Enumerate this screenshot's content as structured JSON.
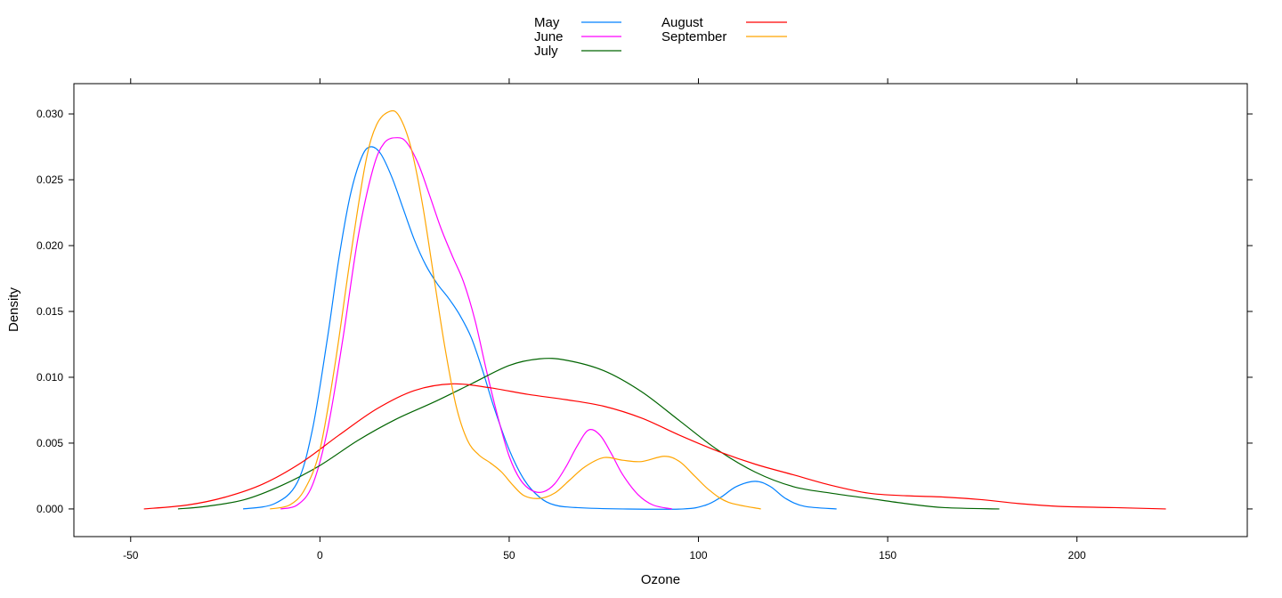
{
  "chart_data": {
    "type": "line",
    "xlabel": "Ozone",
    "ylabel": "Density",
    "xlim": [
      -65,
      245
    ],
    "ylim": [
      -0.0021,
      0.0323
    ],
    "x_ticks": [
      -50,
      0,
      50,
      100,
      150,
      200
    ],
    "x_tick_labels": [
      "-50",
      "0",
      "50",
      "100",
      "150",
      "200"
    ],
    "y_ticks": [
      0,
      0.005,
      0.01,
      0.015,
      0.02,
      0.025,
      0.03
    ],
    "y_tick_labels": [
      "0.000",
      "0.005",
      "0.010",
      "0.015",
      "0.020",
      "0.025",
      "0.030"
    ],
    "legend_position": "top",
    "series": [
      {
        "name": "May",
        "color": "#0080ff",
        "points": [
          [
            -20.3,
            0
          ],
          [
            -12,
            0.0004
          ],
          [
            -6,
            0.002
          ],
          [
            -2,
            0.006
          ],
          [
            2,
            0.013
          ],
          [
            5,
            0.019
          ],
          [
            8,
            0.0238
          ],
          [
            11,
            0.0267
          ],
          [
            13.3,
            0.0275
          ],
          [
            16,
            0.027
          ],
          [
            19,
            0.0252
          ],
          [
            22,
            0.0228
          ],
          [
            25,
            0.0204
          ],
          [
            28,
            0.0185
          ],
          [
            31,
            0.0171
          ],
          [
            34,
            0.016
          ],
          [
            37,
            0.0147
          ],
          [
            40,
            0.013
          ],
          [
            43,
            0.0105
          ],
          [
            46,
            0.0077
          ],
          [
            50,
            0.0045
          ],
          [
            54,
            0.0022
          ],
          [
            58,
            0.0009
          ],
          [
            62,
            0.0003
          ],
          [
            68,
            0.0001
          ],
          [
            80,
            0
          ],
          [
            96,
            0
          ],
          [
            102,
            0.0003
          ],
          [
            106,
            0.0009
          ],
          [
            110,
            0.0017
          ],
          [
            115,
            0.0021
          ],
          [
            119,
            0.0017
          ],
          [
            123,
            0.0008
          ],
          [
            128,
            0.0002
          ],
          [
            136.5,
            0
          ]
        ]
      },
      {
        "name": "June",
        "color": "#ff00ff",
        "points": [
          [
            -10.4,
            0
          ],
          [
            -6,
            0.0003
          ],
          [
            -2,
            0.0018
          ],
          [
            2,
            0.006
          ],
          [
            6,
            0.0128
          ],
          [
            10,
            0.0205
          ],
          [
            14,
            0.0258
          ],
          [
            17,
            0.0278
          ],
          [
            20.5,
            0.0282
          ],
          [
            23,
            0.0278
          ],
          [
            26,
            0.0262
          ],
          [
            29,
            0.0238
          ],
          [
            32,
            0.0213
          ],
          [
            35,
            0.0192
          ],
          [
            38,
            0.0172
          ],
          [
            41,
            0.0143
          ],
          [
            44,
            0.0105
          ],
          [
            47,
            0.007
          ],
          [
            50,
            0.004
          ],
          [
            53,
            0.0022
          ],
          [
            56,
            0.0014
          ],
          [
            59,
            0.0013
          ],
          [
            62,
            0.0019
          ],
          [
            65,
            0.0032
          ],
          [
            68,
            0.0048
          ],
          [
            71,
            0.006
          ],
          [
            74,
            0.0056
          ],
          [
            77,
            0.0042
          ],
          [
            80,
            0.0026
          ],
          [
            84,
            0.0011
          ],
          [
            88,
            0.0003
          ],
          [
            93,
            0
          ]
        ]
      },
      {
        "name": "July",
        "color": "#006400",
        "points": [
          [
            -37.5,
            0
          ],
          [
            -30,
            0.0002
          ],
          [
            -20,
            0.0007
          ],
          [
            -10,
            0.0018
          ],
          [
            0,
            0.0033
          ],
          [
            10,
            0.0052
          ],
          [
            20,
            0.0068
          ],
          [
            30,
            0.0081
          ],
          [
            40,
            0.0095
          ],
          [
            50,
            0.0109
          ],
          [
            58,
            0.0114
          ],
          [
            65,
            0.0113
          ],
          [
            75,
            0.0105
          ],
          [
            85,
            0.0089
          ],
          [
            95,
            0.0067
          ],
          [
            105,
            0.0045
          ],
          [
            115,
            0.0028
          ],
          [
            125,
            0.0017
          ],
          [
            135,
            0.0012
          ],
          [
            145,
            0.0008
          ],
          [
            155,
            0.0004
          ],
          [
            165,
            0.0001
          ],
          [
            179.5,
            0
          ]
        ]
      },
      {
        "name": "August",
        "color": "#ff0000",
        "points": [
          [
            -46.5,
            0
          ],
          [
            -35,
            0.0003
          ],
          [
            -25,
            0.0009
          ],
          [
            -15,
            0.0019
          ],
          [
            -5,
            0.0035
          ],
          [
            5,
            0.0056
          ],
          [
            15,
            0.0076
          ],
          [
            25,
            0.009
          ],
          [
            35,
            0.0095
          ],
          [
            45,
            0.0092
          ],
          [
            55,
            0.0087
          ],
          [
            65,
            0.0083
          ],
          [
            75,
            0.0078
          ],
          [
            85,
            0.0069
          ],
          [
            95,
            0.0056
          ],
          [
            105,
            0.0044
          ],
          [
            115,
            0.0034
          ],
          [
            125,
            0.0026
          ],
          [
            135,
            0.0018
          ],
          [
            145,
            0.0012
          ],
          [
            155,
            0.001
          ],
          [
            165,
            0.0009
          ],
          [
            175,
            0.0007
          ],
          [
            185,
            0.0004
          ],
          [
            195,
            0.0002
          ],
          [
            210,
            0.0001
          ],
          [
            223.5,
            0
          ]
        ]
      },
      {
        "name": "September",
        "color": "#ffa500",
        "points": [
          [
            -13.2,
            0
          ],
          [
            -8,
            0.0003
          ],
          [
            -4,
            0.0015
          ],
          [
            0,
            0.0045
          ],
          [
            4,
            0.011
          ],
          [
            8,
            0.019
          ],
          [
            12,
            0.0262
          ],
          [
            15,
            0.0292
          ],
          [
            18.5,
            0.0302
          ],
          [
            21,
            0.0298
          ],
          [
            24,
            0.0275
          ],
          [
            27,
            0.0233
          ],
          [
            30,
            0.0178
          ],
          [
            33,
            0.0123
          ],
          [
            36,
            0.0078
          ],
          [
            39,
            0.0052
          ],
          [
            42,
            0.0041
          ],
          [
            45,
            0.0035
          ],
          [
            48,
            0.0028
          ],
          [
            51,
            0.0018
          ],
          [
            54,
            0.001
          ],
          [
            58,
            0.0008
          ],
          [
            62,
            0.0012
          ],
          [
            66,
            0.0022
          ],
          [
            70,
            0.0032
          ],
          [
            75,
            0.0039
          ],
          [
            80,
            0.0037
          ],
          [
            85,
            0.0036
          ],
          [
            91,
            0.004
          ],
          [
            95,
            0.0036
          ],
          [
            99,
            0.0025
          ],
          [
            103,
            0.0014
          ],
          [
            108,
            0.0005
          ],
          [
            116.5,
            0
          ]
        ]
      }
    ]
  }
}
